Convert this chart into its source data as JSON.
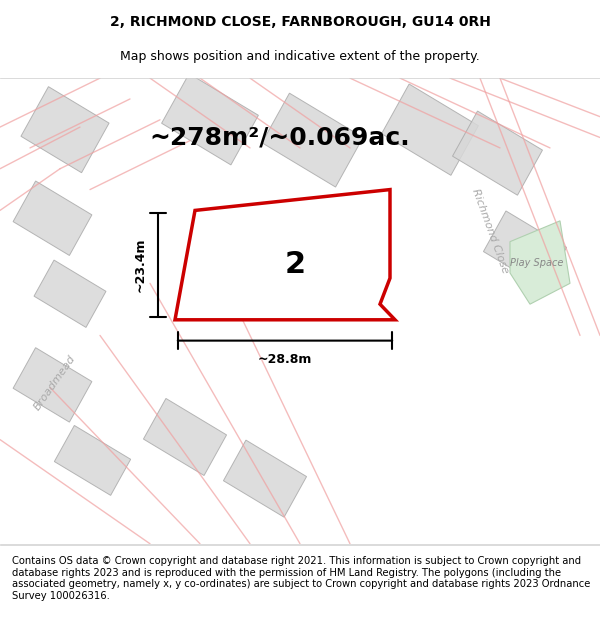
{
  "title": "2, RICHMOND CLOSE, FARNBOROUGH, GU14 0RH",
  "subtitle": "Map shows position and indicative extent of the property.",
  "footer": "Contains OS data © Crown copyright and database right 2021. This information is subject to Crown copyright and database rights 2023 and is reproduced with the permission of HM Land Registry. The polygons (including the associated geometry, namely x, y co-ordinates) are subject to Crown copyright and database rights 2023 Ordnance Survey 100026316.",
  "area_label": "~278m²/~0.069ac.",
  "plot_number": "2",
  "dim_width": "~28.8m",
  "dim_height": "~23.4m",
  "street_label": "Richmond Close",
  "road_label": "Broadmead",
  "play_space_label": "Play Space",
  "bg_color": "#f5f5f5",
  "map_bg": "#ffffff",
  "plot_fill": "#ffffff",
  "plot_edge": "#cc0000",
  "building_fill": "#d8d8d8",
  "building_edge": "#aaaaaa",
  "road_line_color": "#f0a0a0",
  "green_fill": "#d8ecd8",
  "title_fontsize": 10,
  "subtitle_fontsize": 9,
  "footer_fontsize": 7.2
}
